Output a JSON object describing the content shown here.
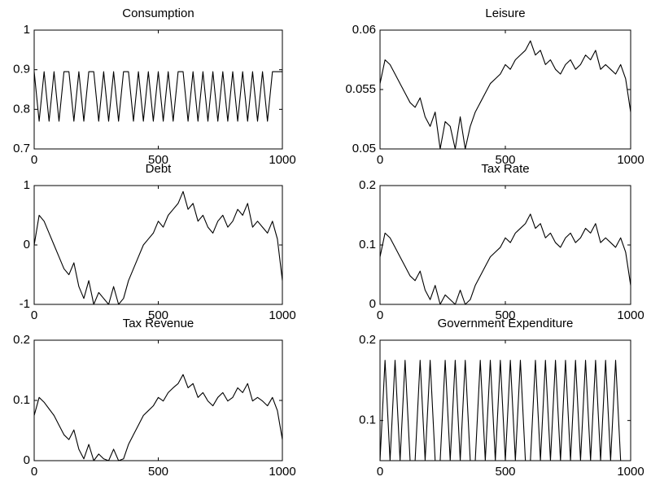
{
  "chart_data": [
    {
      "type": "line",
      "title": "Consumption",
      "xlim": [
        0,
        1000
      ],
      "xticks": [
        0,
        500,
        1000
      ],
      "ylim": [
        0.7,
        1
      ],
      "yticks": [
        0.7,
        0.8,
        0.9,
        1
      ],
      "color": "#000000",
      "x": [
        0,
        20,
        40,
        60,
        80,
        100,
        120,
        140,
        160,
        180,
        200,
        220,
        240,
        260,
        280,
        300,
        320,
        340,
        360,
        380,
        400,
        420,
        440,
        460,
        480,
        500,
        520,
        540,
        560,
        580,
        600,
        620,
        640,
        660,
        680,
        700,
        720,
        740,
        760,
        780,
        800,
        820,
        840,
        860,
        880,
        900,
        920,
        940,
        960,
        980,
        1000
      ],
      "values": [
        0.895,
        0.77,
        0.895,
        0.77,
        0.895,
        0.77,
        0.895,
        0.895,
        0.77,
        0.895,
        0.77,
        0.895,
        0.895,
        0.77,
        0.895,
        0.77,
        0.895,
        0.77,
        0.895,
        0.895,
        0.77,
        0.895,
        0.77,
        0.895,
        0.77,
        0.895,
        0.77,
        0.895,
        0.77,
        0.895,
        0.895,
        0.77,
        0.895,
        0.77,
        0.895,
        0.77,
        0.895,
        0.77,
        0.895,
        0.77,
        0.895,
        0.77,
        0.895,
        0.77,
        0.895,
        0.77,
        0.895,
        0.77,
        0.895,
        0.895,
        0.895
      ]
    },
    {
      "type": "line",
      "title": "Leisure",
      "xlim": [
        0,
        1000
      ],
      "xticks": [
        0,
        500,
        1000
      ],
      "ylim": [
        0.05,
        0.06
      ],
      "yticks": [
        0.05,
        0.055,
        0.06
      ],
      "color": "#000000",
      "x": [
        0,
        20,
        40,
        60,
        80,
        100,
        120,
        140,
        160,
        180,
        200,
        220,
        240,
        260,
        280,
        300,
        320,
        340,
        360,
        380,
        400,
        420,
        440,
        460,
        480,
        500,
        520,
        540,
        560,
        580,
        600,
        620,
        640,
        660,
        680,
        700,
        720,
        740,
        760,
        780,
        800,
        820,
        840,
        860,
        880,
        900,
        920,
        940,
        960,
        980,
        1000
      ],
      "values": [
        0.0555,
        0.0575,
        0.0571,
        0.0563,
        0.0555,
        0.0547,
        0.0539,
        0.0535,
        0.0543,
        0.0527,
        0.0519,
        0.0531,
        0.05,
        0.0523,
        0.0519,
        0.05,
        0.0527,
        0.05,
        0.0519,
        0.0531,
        0.0539,
        0.0547,
        0.0555,
        0.0559,
        0.0563,
        0.0571,
        0.0567,
        0.0575,
        0.0579,
        0.0583,
        0.0591,
        0.0579,
        0.0583,
        0.0571,
        0.0575,
        0.0567,
        0.0563,
        0.0571,
        0.0575,
        0.0567,
        0.0571,
        0.0579,
        0.0575,
        0.0583,
        0.0567,
        0.0571,
        0.0567,
        0.0563,
        0.0571,
        0.0559,
        0.0531
      ]
    },
    {
      "type": "line",
      "title": "Debt",
      "xlim": [
        0,
        1000
      ],
      "xticks": [
        0,
        500,
        1000
      ],
      "ylim": [
        -1,
        1
      ],
      "yticks": [
        -1,
        0,
        1
      ],
      "color": "#000000",
      "x": [
        0,
        20,
        40,
        60,
        80,
        100,
        120,
        140,
        160,
        180,
        200,
        220,
        240,
        260,
        280,
        300,
        320,
        340,
        360,
        380,
        400,
        420,
        440,
        460,
        480,
        500,
        520,
        540,
        560,
        580,
        600,
        620,
        640,
        660,
        680,
        700,
        720,
        740,
        760,
        780,
        800,
        820,
        840,
        860,
        880,
        900,
        920,
        940,
        960,
        980,
        1000
      ],
      "values": [
        0,
        0.5,
        0.4,
        0.2,
        0,
        -0.2,
        -0.4,
        -0.5,
        -0.3,
        -0.7,
        -0.9,
        -0.6,
        -1,
        -0.8,
        -0.9,
        -1,
        -0.7,
        -1,
        -0.9,
        -0.6,
        -0.4,
        -0.2,
        0,
        0.1,
        0.2,
        0.4,
        0.3,
        0.5,
        0.6,
        0.7,
        0.9,
        0.6,
        0.7,
        0.4,
        0.5,
        0.3,
        0.2,
        0.4,
        0.5,
        0.3,
        0.4,
        0.6,
        0.5,
        0.7,
        0.3,
        0.4,
        0.3,
        0.2,
        0.4,
        0.1,
        -0.6
      ]
    },
    {
      "type": "line",
      "title": "Tax Rate",
      "xlim": [
        0,
        1000
      ],
      "xticks": [
        0,
        500,
        1000
      ],
      "ylim": [
        0,
        0.2
      ],
      "yticks": [
        0,
        0.1,
        0.2
      ],
      "color": "#000000",
      "x": [
        0,
        20,
        40,
        60,
        80,
        100,
        120,
        140,
        160,
        180,
        200,
        220,
        240,
        260,
        280,
        300,
        320,
        340,
        360,
        380,
        400,
        420,
        440,
        460,
        480,
        500,
        520,
        540,
        560,
        580,
        600,
        620,
        640,
        660,
        680,
        700,
        720,
        740,
        760,
        780,
        800,
        820,
        840,
        860,
        880,
        900,
        920,
        940,
        960,
        980,
        1000
      ],
      "values": [
        0.08,
        0.12,
        0.112,
        0.096,
        0.08,
        0.064,
        0.048,
        0.04,
        0.056,
        0.024,
        0.008,
        0.032,
        0,
        0.016,
        0.008,
        0,
        0.024,
        0,
        0.008,
        0.032,
        0.048,
        0.064,
        0.08,
        0.088,
        0.096,
        0.112,
        0.104,
        0.12,
        0.128,
        0.136,
        0.152,
        0.128,
        0.136,
        0.112,
        0.12,
        0.104,
        0.096,
        0.112,
        0.12,
        0.104,
        0.112,
        0.128,
        0.12,
        0.136,
        0.104,
        0.112,
        0.104,
        0.096,
        0.112,
        0.088,
        0.032
      ]
    },
    {
      "type": "line",
      "title": "Tax Revenue",
      "xlim": [
        0,
        1000
      ],
      "xticks": [
        0,
        500,
        1000
      ],
      "ylim": [
        0,
        0.2
      ],
      "yticks": [
        0,
        0.1,
        0.2
      ],
      "color": "#000000",
      "x": [
        0,
        20,
        40,
        60,
        80,
        100,
        120,
        140,
        160,
        180,
        200,
        220,
        240,
        260,
        280,
        300,
        320,
        340,
        360,
        380,
        400,
        420,
        440,
        460,
        480,
        500,
        520,
        540,
        560,
        580,
        600,
        620,
        640,
        660,
        680,
        700,
        720,
        740,
        760,
        780,
        800,
        820,
        840,
        860,
        880,
        900,
        920,
        940,
        960,
        980,
        1000
      ],
      "values": [
        0.075,
        0.105,
        0.097,
        0.086,
        0.075,
        0.059,
        0.043,
        0.035,
        0.051,
        0.019,
        0.003,
        0.027,
        0,
        0.011,
        0.003,
        0,
        0.019,
        0,
        0.003,
        0.027,
        0.043,
        0.059,
        0.075,
        0.083,
        0.091,
        0.105,
        0.099,
        0.113,
        0.121,
        0.128,
        0.143,
        0.121,
        0.128,
        0.105,
        0.113,
        0.099,
        0.091,
        0.105,
        0.113,
        0.099,
        0.105,
        0.121,
        0.113,
        0.128,
        0.099,
        0.105,
        0.099,
        0.091,
        0.105,
        0.083,
        0.035
      ]
    },
    {
      "type": "line",
      "title": "Government Expenditure",
      "xlim": [
        0,
        1000
      ],
      "xticks": [
        0,
        500,
        1000
      ],
      "ylim": [
        0.05,
        0.2
      ],
      "yticks": [
        0.1,
        0.2
      ],
      "color": "#000000",
      "x": [
        0,
        20,
        40,
        60,
        80,
        100,
        120,
        140,
        160,
        180,
        200,
        220,
        240,
        260,
        280,
        300,
        320,
        340,
        360,
        380,
        400,
        420,
        440,
        460,
        480,
        500,
        520,
        540,
        560,
        580,
        600,
        620,
        640,
        660,
        680,
        700,
        720,
        740,
        760,
        780,
        800,
        820,
        840,
        860,
        880,
        900,
        920,
        940,
        960,
        980,
        1000
      ],
      "values": [
        0.05,
        0.175,
        0.05,
        0.175,
        0.05,
        0.175,
        0.05,
        0.05,
        0.175,
        0.05,
        0.175,
        0.05,
        0.05,
        0.175,
        0.05,
        0.175,
        0.05,
        0.175,
        0.05,
        0.05,
        0.175,
        0.05,
        0.175,
        0.05,
        0.175,
        0.05,
        0.175,
        0.05,
        0.175,
        0.05,
        0.05,
        0.175,
        0.05,
        0.175,
        0.05,
        0.175,
        0.05,
        0.175,
        0.05,
        0.175,
        0.05,
        0.175,
        0.05,
        0.175,
        0.05,
        0.175,
        0.05,
        0.175,
        0.05,
        0.05,
        0.05
      ]
    }
  ]
}
